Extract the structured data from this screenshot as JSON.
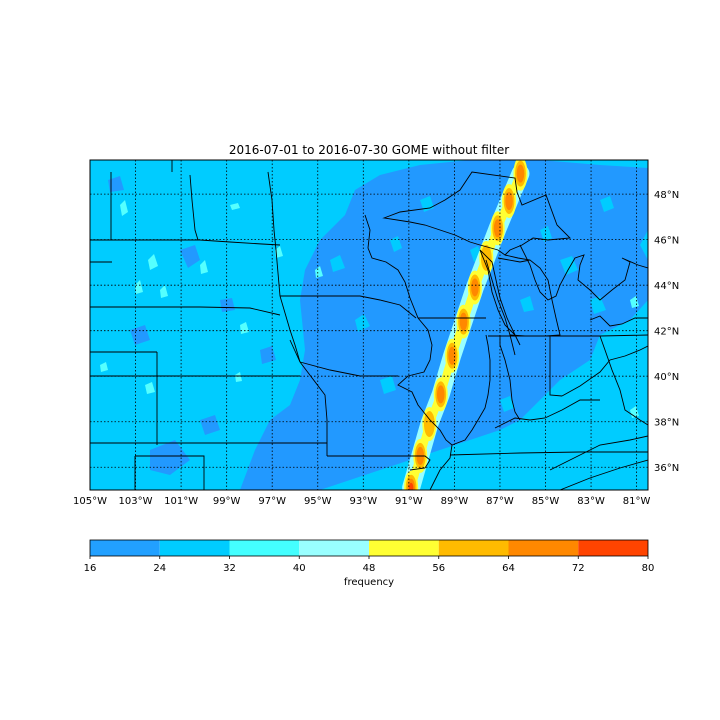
{
  "map": {
    "title": "2016-07-01 to 2016-07-30 GOME without filter",
    "extent": {
      "lon": [
        -105,
        -80.5
      ],
      "lat": [
        35,
        49.5
      ]
    },
    "lon_tick_values": [
      -105,
      -103,
      -101,
      -99,
      -97,
      -95,
      -93,
      -91,
      -89,
      -87,
      -85,
      -83,
      -81
    ],
    "lon_tick_labels": [
      "105°W",
      "103°W",
      "101°W",
      "99°W",
      "97°W",
      "95°W",
      "93°W",
      "91°W",
      "89°W",
      "87°W",
      "85°W",
      "83°W",
      "81°W"
    ],
    "lat_tick_values": [
      36,
      38,
      40,
      42,
      44,
      46,
      48
    ],
    "lat_tick_labels": [
      "36°N",
      "38°N",
      "40°N",
      "42°N",
      "44°N",
      "46°N",
      "48°N"
    ],
    "background_level_color": "#00ccff",
    "gridlines": "dotted",
    "hotspot_track": [
      {
        "lon": -90.9,
        "lat": 35.1,
        "level": 72
      },
      {
        "lon": -90.5,
        "lat": 36.5,
        "level": 64
      },
      {
        "lon": -90.1,
        "lat": 37.9,
        "level": 56
      },
      {
        "lon": -89.6,
        "lat": 39.2,
        "level": 64
      },
      {
        "lon": -89.1,
        "lat": 40.9,
        "level": 64
      },
      {
        "lon": -88.6,
        "lat": 42.4,
        "level": 64
      },
      {
        "lon": -88.1,
        "lat": 43.9,
        "level": 64
      },
      {
        "lon": -87.6,
        "lat": 45.2,
        "level": 56
      },
      {
        "lon": -87.1,
        "lat": 46.5,
        "level": 64
      },
      {
        "lon": -86.6,
        "lat": 47.7,
        "level": 64
      },
      {
        "lon": -86.1,
        "lat": 48.9,
        "level": 64
      }
    ]
  },
  "colorbar": {
    "label": "frequency",
    "levels": [
      16,
      24,
      32,
      40,
      48,
      56,
      64,
      72,
      80
    ],
    "tick_labels": [
      "16",
      "24",
      "32",
      "40",
      "48",
      "56",
      "64",
      "72",
      "80"
    ],
    "colors": [
      "#22a0ff",
      "#00ccff",
      "#44ffff",
      "#99ffff",
      "#ffff33",
      "#ffbb00",
      "#ff8800",
      "#ff4400"
    ]
  },
  "colors": {
    "low": "#22a0ff",
    "mid": "#00ccff",
    "lowest_visible": "#3399ff",
    "border": "#000000"
  }
}
